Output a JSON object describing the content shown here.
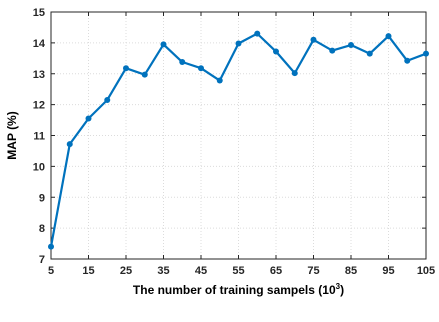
{
  "chart_data": {
    "type": "line",
    "xlabel": "The number of training sampels (10",
    "xlabel_superscript": "3",
    "xlabel_suffix": ")",
    "ylabel": "MAP (%)",
    "xlim": [
      5,
      105
    ],
    "ylim": [
      7,
      15
    ],
    "xticks": [
      5,
      15,
      25,
      35,
      45,
      55,
      65,
      75,
      85,
      95,
      105
    ],
    "yticks": [
      7,
      8,
      9,
      10,
      11,
      12,
      13,
      14,
      15
    ],
    "grid": true,
    "series": [
      {
        "color": "#0072BD",
        "x": [
          5,
          10,
          15,
          20,
          25,
          30,
          35,
          40,
          45,
          50,
          55,
          60,
          65,
          70,
          75,
          80,
          85,
          90,
          95,
          100,
          105
        ],
        "y": [
          7.4,
          10.72,
          11.55,
          12.15,
          13.18,
          12.97,
          13.95,
          13.38,
          13.18,
          12.78,
          13.98,
          14.3,
          13.72,
          13.02,
          14.1,
          13.75,
          13.93,
          13.65,
          14.22,
          13.42,
          13.65
        ]
      }
    ]
  }
}
